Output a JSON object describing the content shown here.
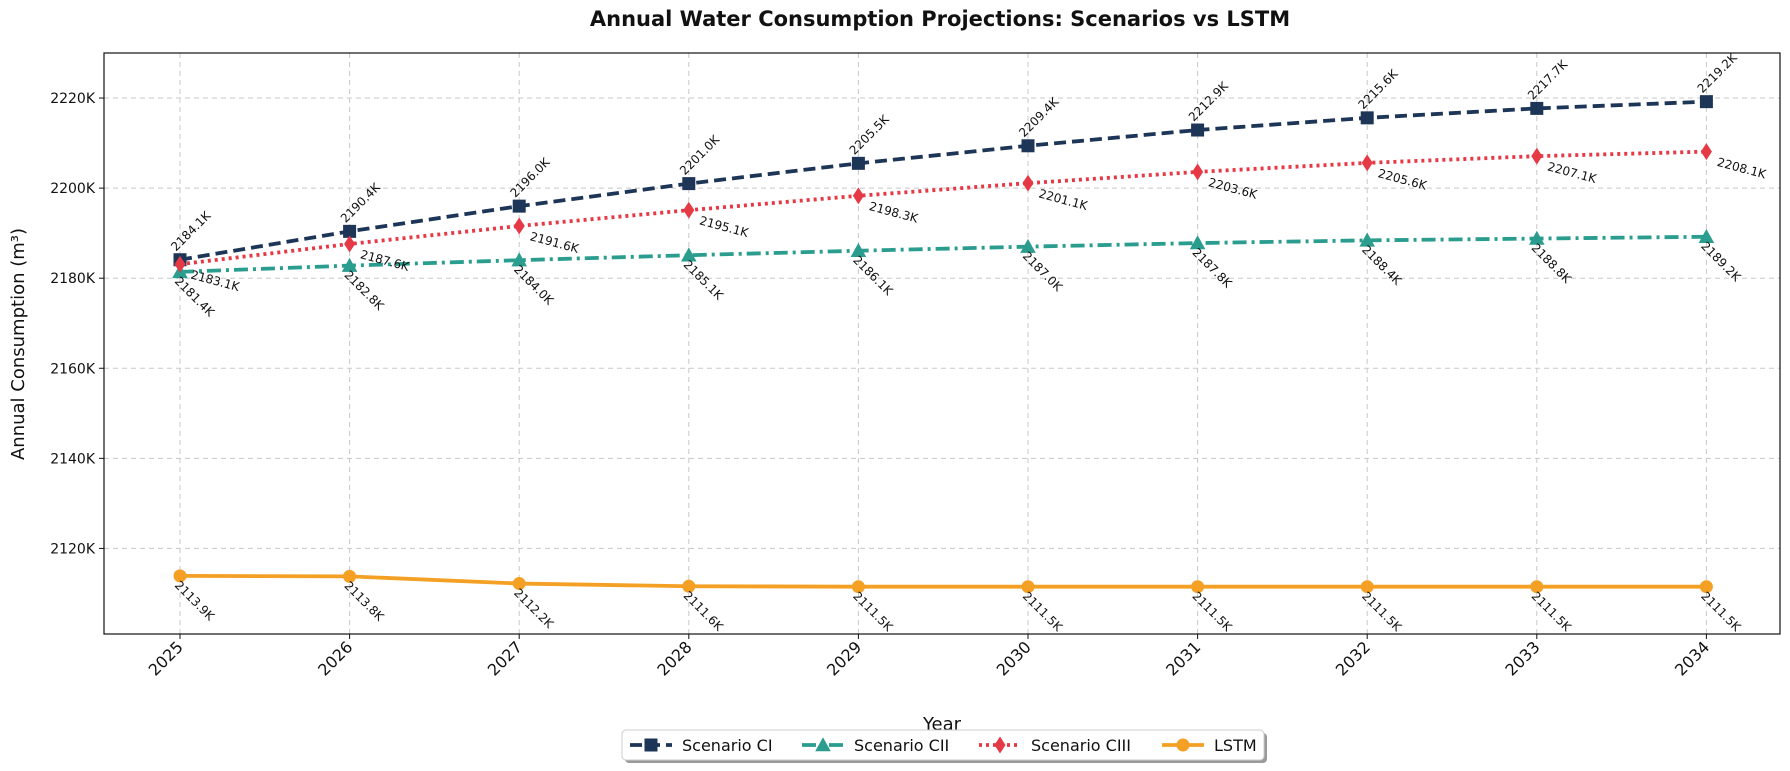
{
  "chart_data": {
    "type": "line",
    "title": "Annual Water Consumption Projections: Scenarios vs LSTM",
    "xlabel": "Year",
    "ylabel": "Annual Consumption (m³)",
    "x": [
      "2025",
      "2026",
      "2027",
      "2028",
      "2029",
      "2030",
      "2031",
      "2032",
      "2033",
      "2034"
    ],
    "ylim": [
      2101,
      2230
    ],
    "yticks": [
      2120,
      2140,
      2160,
      2180,
      2200,
      2220
    ],
    "ytick_labels": [
      "2120K",
      "2140K",
      "2160K",
      "2180K",
      "2200K",
      "2220K"
    ],
    "grid": true,
    "legend_position": "bottom-center",
    "series": [
      {
        "name": "Scenario CI",
        "color": "#1d3557",
        "line_style": "dashed",
        "marker": "square",
        "values": [
          2184.1,
          2190.4,
          2196.0,
          2201.0,
          2205.5,
          2209.4,
          2212.9,
          2215.6,
          2217.7,
          2219.2
        ],
        "labels": [
          "2184.1K",
          "2190.4K",
          "2196.0K",
          "2201.0K",
          "2205.5K",
          "2209.4K",
          "2212.9K",
          "2215.6K",
          "2217.7K",
          "2219.2K"
        ]
      },
      {
        "name": "Scenario CII",
        "color": "#2a9d8f",
        "line_style": "dashdot",
        "marker": "triangle",
        "values": [
          2181.4,
          2182.8,
          2184.0,
          2185.1,
          2186.1,
          2187.0,
          2187.8,
          2188.4,
          2188.8,
          2189.2
        ],
        "labels": [
          "2181.4K",
          "2182.8K",
          "2184.0K",
          "2185.1K",
          "2186.1K",
          "2187.0K",
          "2187.8K",
          "2188.4K",
          "2188.8K",
          "2189.2K"
        ]
      },
      {
        "name": "Scenario CIII",
        "color": "#e63946",
        "line_style": "dotted",
        "marker": "diamond",
        "values": [
          2183.1,
          2187.6,
          2191.6,
          2195.1,
          2198.3,
          2201.1,
          2203.6,
          2205.6,
          2207.1,
          2208.1
        ],
        "labels": [
          "2183.1K",
          "2187.6K",
          "2191.6K",
          "2195.1K",
          "2198.3K",
          "2201.1K",
          "2203.6K",
          "2205.6K",
          "2207.1K",
          "2208.1K"
        ]
      },
      {
        "name": "LSTM",
        "color": "#f4a024",
        "line_style": "solid",
        "marker": "circle",
        "values": [
          2113.9,
          2113.8,
          2112.2,
          2111.6,
          2111.5,
          2111.5,
          2111.5,
          2111.5,
          2111.5,
          2111.5
        ],
        "labels": [
          "2113.9K",
          "2113.8K",
          "2112.2K",
          "2111.6K",
          "2111.5K",
          "2111.5K",
          "2111.5K",
          "2111.5K",
          "2111.5K",
          "2111.5K"
        ]
      }
    ]
  }
}
